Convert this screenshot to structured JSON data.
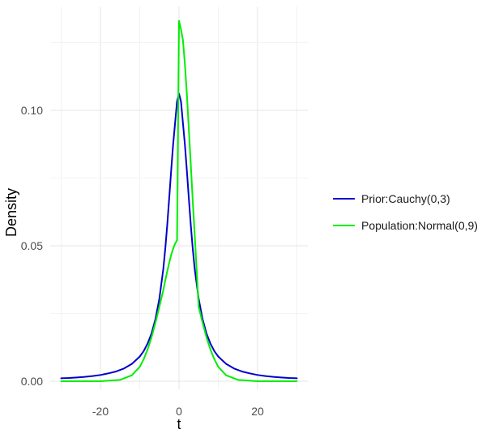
{
  "chart_data": {
    "type": "line",
    "title": "",
    "xlabel": "t",
    "ylabel": "Density",
    "xlim": [
      -30,
      30
    ],
    "ylim": [
      0,
      0.133
    ],
    "x_ticks": [
      -20,
      0,
      20
    ],
    "x_tick_labels": [
      "-20",
      "0",
      "20"
    ],
    "y_ticks": [
      0,
      0.05,
      0.1
    ],
    "y_tick_labels": [
      "0.00",
      "0.05",
      "0.10"
    ],
    "grid": true,
    "legend_position": "right",
    "series": [
      {
        "name": "Prior:Cauchy(0,3)",
        "color": "#0000cc",
        "x": [
          -30,
          -28,
          -26,
          -24,
          -22,
          -20,
          -18,
          -16,
          -14,
          -12,
          -10,
          -9,
          -8,
          -7,
          -6,
          -5,
          -4,
          -3.5,
          -3,
          -2.5,
          -2,
          -1.5,
          -1,
          -0.5,
          0,
          0.5,
          1,
          1.5,
          2,
          2.5,
          3,
          3.5,
          4,
          5,
          6,
          7,
          8,
          9,
          10,
          12,
          14,
          16,
          18,
          20,
          22,
          24,
          26,
          28,
          30
        ],
        "y": [
          0.0011,
          0.0012,
          0.0014,
          0.0016,
          0.0019,
          0.0023,
          0.0029,
          0.0036,
          0.0047,
          0.0064,
          0.0091,
          0.0111,
          0.0139,
          0.0176,
          0.0229,
          0.0305,
          0.0414,
          0.0489,
          0.0576,
          0.0675,
          0.0777,
          0.0873,
          0.0953,
          0.1033,
          0.1061,
          0.1033,
          0.0953,
          0.0873,
          0.0777,
          0.0675,
          0.0576,
          0.0489,
          0.0414,
          0.0305,
          0.0229,
          0.0176,
          0.0139,
          0.0111,
          0.0091,
          0.0064,
          0.0047,
          0.0036,
          0.0029,
          0.0023,
          0.0019,
          0.0016,
          0.0014,
          0.0012,
          0.0011
        ]
      },
      {
        "name": "Population:Normal(0,9)",
        "color": "#00ee00",
        "x": [
          -30,
          -20,
          -15,
          -12,
          -10,
          -9,
          -8,
          -7,
          -6,
          -5,
          -4,
          -3.5,
          -3,
          -2.5,
          -2,
          -1.5,
          -1,
          -0.5,
          0,
          0.5,
          1,
          1.5,
          2,
          2.5,
          3,
          3.5,
          4,
          5,
          6,
          7,
          8,
          9,
          10,
          12,
          15,
          20,
          30
        ],
        "y": [
          0.0,
          0.0,
          0.0005,
          0.0022,
          0.0053,
          0.0081,
          0.0117,
          0.0162,
          0.0216,
          0.0275,
          0.0336,
          0.0372,
          0.0405,
          0.0437,
          0.0466,
          0.0489,
          0.0508,
          0.052,
          0.133,
          0.1299,
          0.1259,
          0.117,
          0.106,
          0.093,
          0.08,
          0.0665,
          0.054,
          0.0275,
          0.0216,
          0.0162,
          0.0117,
          0.0081,
          0.0053,
          0.0022,
          0.0005,
          0.0,
          0.0
        ]
      }
    ]
  }
}
